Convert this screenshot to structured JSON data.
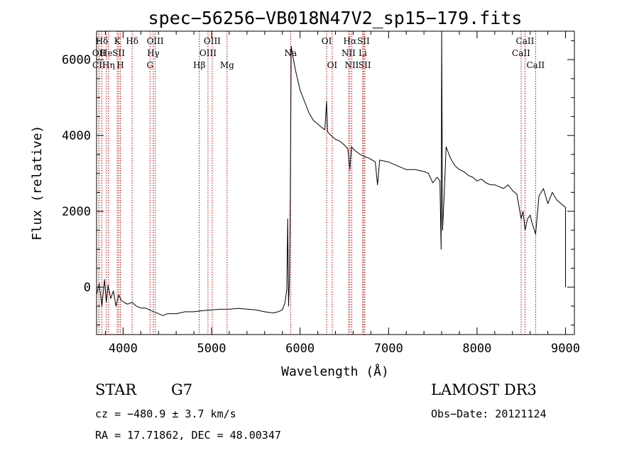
{
  "chart_data": {
    "type": "line",
    "title": "spec−56256−VB018N47V2_sp15−179.fits",
    "xlabel": "Wavelength (Å)",
    "ylabel": "Flux (relative)",
    "xlim": [
      3700,
      9100
    ],
    "ylim": [
      -1250,
      6750
    ],
    "x_ticks": [
      4000,
      5000,
      6000,
      7000,
      8000,
      9000
    ],
    "x_tick_labels": [
      "4000",
      "5000",
      "6000",
      "7000",
      "8000",
      "9000"
    ],
    "y_ticks": [
      0,
      2000,
      4000,
      6000
    ],
    "y_tick_labels": [
      "0",
      "2000",
      "4000",
      "6000"
    ],
    "grid": false,
    "line_color": "#000000",
    "marker_color": "#c00000",
    "series": [
      {
        "name": "spectrum",
        "points": [
          [
            3700,
            -200
          ],
          [
            3730,
            100
          ],
          [
            3760,
            -500
          ],
          [
            3790,
            200
          ],
          [
            3810,
            -400
          ],
          [
            3830,
            50
          ],
          [
            3860,
            -300
          ],
          [
            3890,
            -100
          ],
          [
            3920,
            -500
          ],
          [
            3950,
            -200
          ],
          [
            3980,
            -350
          ],
          [
            4010,
            -400
          ],
          [
            4050,
            -450
          ],
          [
            4100,
            -400
          ],
          [
            4150,
            -500
          ],
          [
            4200,
            -550
          ],
          [
            4250,
            -550
          ],
          [
            4300,
            -600
          ],
          [
            4350,
            -650
          ],
          [
            4400,
            -700
          ],
          [
            4450,
            -750
          ],
          [
            4500,
            -700
          ],
          [
            4600,
            -700
          ],
          [
            4700,
            -650
          ],
          [
            4800,
            -650
          ],
          [
            4900,
            -620
          ],
          [
            5000,
            -600
          ],
          [
            5100,
            -580
          ],
          [
            5200,
            -580
          ],
          [
            5300,
            -560
          ],
          [
            5400,
            -580
          ],
          [
            5500,
            -600
          ],
          [
            5600,
            -650
          ],
          [
            5700,
            -680
          ],
          [
            5750,
            -650
          ],
          [
            5800,
            -600
          ],
          [
            5830,
            -400
          ],
          [
            5850,
            -50
          ],
          [
            5860,
            1800
          ],
          [
            5870,
            -500
          ],
          [
            5880,
            200
          ],
          [
            5890,
            2500
          ],
          [
            5900,
            6350
          ],
          [
            5910,
            6200
          ],
          [
            5950,
            5700
          ],
          [
            6000,
            5200
          ],
          [
            6050,
            4900
          ],
          [
            6100,
            4600
          ],
          [
            6150,
            4400
          ],
          [
            6200,
            4300
          ],
          [
            6250,
            4200
          ],
          [
            6280,
            4150
          ],
          [
            6300,
            4900
          ],
          [
            6310,
            4100
          ],
          [
            6350,
            4000
          ],
          [
            6400,
            3900
          ],
          [
            6450,
            3850
          ],
          [
            6500,
            3750
          ],
          [
            6540,
            3650
          ],
          [
            6563,
            3100
          ],
          [
            6580,
            3700
          ],
          [
            6620,
            3600
          ],
          [
            6680,
            3500
          ],
          [
            6720,
            3450
          ],
          [
            6780,
            3400
          ],
          [
            6850,
            3300
          ],
          [
            6875,
            2700
          ],
          [
            6900,
            3350
          ],
          [
            7000,
            3300
          ],
          [
            7100,
            3200
          ],
          [
            7200,
            3100
          ],
          [
            7300,
            3100
          ],
          [
            7400,
            3050
          ],
          [
            7450,
            3000
          ],
          [
            7500,
            2750
          ],
          [
            7550,
            2900
          ],
          [
            7580,
            2800
          ],
          [
            7594,
            1000
          ],
          [
            7600,
            6700
          ],
          [
            7610,
            1500
          ],
          [
            7630,
            2500
          ],
          [
            7650,
            3700
          ],
          [
            7700,
            3400
          ],
          [
            7750,
            3200
          ],
          [
            7800,
            3100
          ],
          [
            7850,
            3050
          ],
          [
            7900,
            2950
          ],
          [
            7950,
            2900
          ],
          [
            8000,
            2800
          ],
          [
            8050,
            2850
          ],
          [
            8100,
            2750
          ],
          [
            8150,
            2700
          ],
          [
            8200,
            2700
          ],
          [
            8250,
            2650
          ],
          [
            8300,
            2600
          ],
          [
            8350,
            2700
          ],
          [
            8400,
            2550
          ],
          [
            8450,
            2450
          ],
          [
            8498,
            1800
          ],
          [
            8520,
            2000
          ],
          [
            8542,
            1500
          ],
          [
            8570,
            1800
          ],
          [
            8600,
            1900
          ],
          [
            8620,
            1700
          ],
          [
            8662,
            1400
          ],
          [
            8700,
            2400
          ],
          [
            8750,
            2600
          ],
          [
            8800,
            2200
          ],
          [
            8850,
            2500
          ],
          [
            8900,
            2300
          ],
          [
            8950,
            2200
          ],
          [
            9000,
            2100
          ],
          [
            9000,
            0
          ]
        ]
      }
    ],
    "line_markers": [
      {
        "label": "Hδ",
        "x": 3760,
        "row": 1
      },
      {
        "label": "OII",
        "x": 3727,
        "row": 2
      },
      {
        "label": "CII",
        "x": 3727,
        "row": 3
      },
      {
        "label": "He",
        "x": 3810,
        "row": 2
      },
      {
        "label": "Hη",
        "x": 3835,
        "row": 3
      },
      {
        "label": "K",
        "x": 3934,
        "row": 1
      },
      {
        "label": "SII",
        "x": 3950,
        "row": 2
      },
      {
        "label": "H",
        "x": 3969,
        "row": 3
      },
      {
        "label": "Hδ",
        "x": 4102,
        "row": 1
      },
      {
        "label": "OIII",
        "x": 4363,
        "row": 1
      },
      {
        "label": "Hγ",
        "x": 4341,
        "row": 2
      },
      {
        "label": "G",
        "x": 4304,
        "row": 3
      },
      {
        "label": "OIII",
        "x": 5007,
        "row": 1
      },
      {
        "label": "OIII",
        "x": 4959,
        "row": 2
      },
      {
        "label": "Hβ",
        "x": 4861,
        "row": 3
      },
      {
        "label": "Mg",
        "x": 5175,
        "row": 3
      },
      {
        "label": "Na",
        "x": 5893,
        "row": 2
      },
      {
        "label": "OI",
        "x": 6300,
        "row": 1
      },
      {
        "label": "OI",
        "x": 6363,
        "row": 3
      },
      {
        "label": "Hα",
        "x": 6563,
        "row": 1
      },
      {
        "label": "SII",
        "x": 6716,
        "row": 1
      },
      {
        "label": "NII",
        "x": 6548,
        "row": 2
      },
      {
        "label": "Li",
        "x": 6708,
        "row": 2
      },
      {
        "label": "NII",
        "x": 6584,
        "row": 3
      },
      {
        "label": "SII",
        "x": 6731,
        "row": 3
      },
      {
        "label": "CaII",
        "x": 8542,
        "row": 1
      },
      {
        "label": "CaII",
        "x": 8498,
        "row": 2
      },
      {
        "label": "CaII",
        "x": 8662,
        "row": 3
      }
    ]
  },
  "info": {
    "class": "STAR",
    "subclass": "G7",
    "survey": "LAMOST DR3",
    "cz": "cz = −480.9 ± 3.7 km/s",
    "obs_date": "Obs−Date: 20121124",
    "coords": "RA =  17.71862, DEC =  48.00347"
  }
}
